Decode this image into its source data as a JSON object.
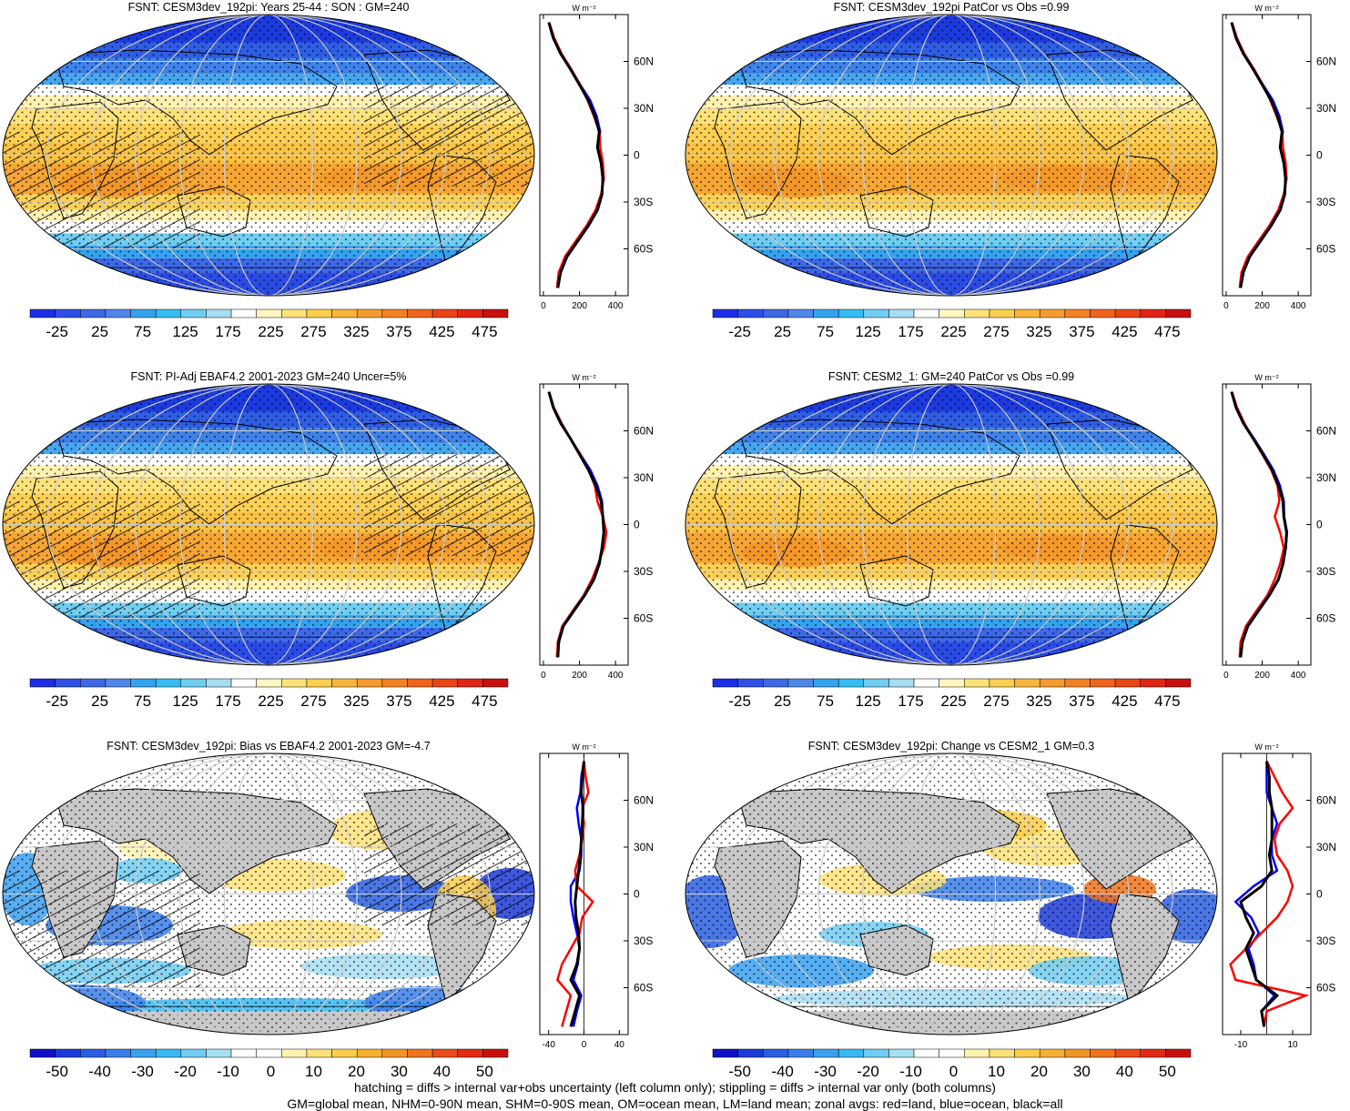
{
  "footer": {
    "line1": "hatching = diffs > internal var+obs uncertainty (left column only); stippling = diffs > internal var only (both columns)",
    "line2": "GM=global mean, NHM=0-90N mean, SHM=0-90S mean, OM=ocean mean, LM=land mean; zonal avgs: red=land, blue=ocean, black=all"
  },
  "colors": {
    "land": "#ff0000",
    "ocean": "#0000ff",
    "all": "#000000",
    "continent_mask": "#c8c8c8"
  },
  "zonal_units": "W m⁻²",
  "lat_ticks": [
    "60N",
    "30N",
    "0",
    "30S",
    "60S"
  ],
  "chart_data": [
    {
      "type": "heatmap",
      "title": "FSNT: CESM3dev_192pi: Years 25-44 : SON : GM=240",
      "kind": "full",
      "colorbar_labels": [
        "-25",
        "25",
        "75",
        "125",
        "175",
        "225",
        "275",
        "325",
        "375",
        "425",
        "475"
      ],
      "zonal_mean": {
        "type": "line",
        "xticks": [
          "0",
          "200",
          "400"
        ],
        "xlim": [
          -20,
          470
        ],
        "lat": [
          85,
          75,
          65,
          55,
          45,
          35,
          25,
          15,
          5,
          -5,
          -15,
          -25,
          -35,
          -45,
          -55,
          -65,
          -75,
          -85
        ],
        "series": [
          {
            "name": "all",
            "values": [
              30,
              55,
              95,
              150,
              200,
              250,
              285,
              310,
              300,
              320,
              330,
              325,
              300,
              250,
              190,
              130,
              95,
              80
            ]
          },
          {
            "name": "land",
            "values": [
              32,
              60,
              100,
              155,
              205,
              245,
              280,
              312,
              315,
              330,
              335,
              320,
              290,
              240,
              180,
              120,
              85,
              75
            ]
          },
          {
            "name": "ocean",
            "values": [
              30,
              55,
              95,
              150,
              205,
              260,
              295,
              315,
              300,
              320,
              328,
              326,
              302,
              252,
              192,
              132,
              96,
              80
            ]
          }
        ]
      }
    },
    {
      "type": "heatmap",
      "title": "FSNT: CESM3dev_192pi PatCor vs Obs =0.99",
      "kind": "full",
      "colorbar_labels": [
        "-25",
        "25",
        "75",
        "125",
        "175",
        "225",
        "275",
        "325",
        "375",
        "425",
        "475"
      ],
      "zonal_mean": {
        "type": "line",
        "xticks": [
          "0",
          "200",
          "400"
        ],
        "xlim": [
          -20,
          470
        ],
        "lat": [
          85,
          75,
          65,
          55,
          45,
          35,
          25,
          15,
          5,
          -5,
          -15,
          -25,
          -35,
          -45,
          -55,
          -65,
          -75,
          -85
        ],
        "series": [
          {
            "name": "all",
            "values": [
              30,
              55,
              95,
              150,
              200,
              250,
              285,
              310,
              300,
              320,
              330,
              325,
              300,
              250,
              190,
              130,
              95,
              80
            ]
          },
          {
            "name": "land",
            "values": [
              32,
              60,
              100,
              155,
              205,
              245,
              280,
              312,
              315,
              330,
              335,
              320,
              290,
              240,
              180,
              120,
              85,
              75
            ]
          },
          {
            "name": "ocean",
            "values": [
              30,
              55,
              95,
              150,
              205,
              260,
              295,
              315,
              300,
              320,
              328,
              326,
              302,
              252,
              192,
              132,
              96,
              80
            ]
          }
        ]
      }
    },
    {
      "type": "heatmap",
      "title": "FSNT: PI-Adj EBAF4.2 2001-2023 GM=240 Uncer=5%",
      "kind": "full",
      "colorbar_labels": [
        "-25",
        "25",
        "75",
        "125",
        "175",
        "225",
        "275",
        "325",
        "375",
        "425",
        "475"
      ],
      "zonal_mean": {
        "type": "line",
        "xticks": [
          "0",
          "200",
          "400"
        ],
        "xlim": [
          -20,
          470
        ],
        "lat": [
          85,
          75,
          65,
          55,
          45,
          35,
          25,
          15,
          5,
          -5,
          -15,
          -25,
          -35,
          -45,
          -55,
          -65,
          -75,
          -85
        ],
        "series": [
          {
            "name": "all",
            "values": [
              30,
              55,
              95,
              150,
              200,
              250,
              290,
              320,
              330,
              335,
              325,
              310,
              280,
              230,
              170,
              110,
              85,
              80
            ]
          },
          {
            "name": "land",
            "values": [
              32,
              58,
              100,
              150,
              205,
              250,
              285,
              300,
              330,
              350,
              335,
              305,
              270,
              225,
              165,
              105,
              80,
              75
            ]
          },
          {
            "name": "ocean",
            "values": [
              30,
              55,
              95,
              150,
              205,
              260,
              300,
              325,
              330,
              335,
              325,
              312,
              282,
              232,
              172,
              112,
              86,
              80
            ]
          }
        ]
      }
    },
    {
      "type": "heatmap",
      "title": "FSNT: CESM2_1: GM=240 PatCor vs Obs =0.99",
      "kind": "full",
      "colorbar_labels": [
        "-25",
        "25",
        "75",
        "125",
        "175",
        "225",
        "275",
        "325",
        "375",
        "425",
        "475"
      ],
      "zonal_mean": {
        "type": "line",
        "xticks": [
          "0",
          "200",
          "400"
        ],
        "xlim": [
          -20,
          470
        ],
        "lat": [
          85,
          75,
          65,
          55,
          45,
          35,
          25,
          15,
          5,
          -5,
          -15,
          -25,
          -35,
          -45,
          -55,
          -65,
          -75,
          -85
        ],
        "series": [
          {
            "name": "all",
            "values": [
              30,
              55,
              95,
              150,
              205,
              255,
              290,
              315,
              320,
              335,
              330,
              315,
              290,
              240,
              180,
              120,
              90,
              80
            ]
          },
          {
            "name": "land",
            "values": [
              32,
              60,
              100,
              150,
              200,
              250,
              285,
              295,
              270,
              300,
              320,
              300,
              270,
              230,
              170,
              110,
              80,
              75
            ]
          },
          {
            "name": "ocean",
            "values": [
              30,
              55,
              95,
              155,
              210,
              262,
              298,
              320,
              322,
              338,
              330,
              317,
              292,
              242,
              182,
              122,
              91,
              80
            ]
          }
        ]
      }
    },
    {
      "type": "heatmap",
      "title": "FSNT: CESM3dev_192pi: Bias vs EBAF4.2 2001-2023  GM=-4.7",
      "kind": "diff",
      "colorbar_labels": [
        "-50",
        "-40",
        "-30",
        "-20",
        "-10",
        "0",
        "10",
        "20",
        "30",
        "40",
        "50"
      ],
      "zonal_mean": {
        "type": "line",
        "xticks": [
          "-40",
          "0",
          "40"
        ],
        "xlim": [
          -50,
          50
        ],
        "lat": [
          85,
          75,
          65,
          55,
          45,
          35,
          25,
          15,
          5,
          -5,
          -15,
          -25,
          -35,
          -45,
          -55,
          -65,
          -75,
          -85
        ],
        "series": [
          {
            "name": "all",
            "values": [
              0,
              -2,
              -3,
              -1,
              -2,
              -3,
              -4,
              -6,
              -8,
              -10,
              -9,
              -6,
              -5,
              -8,
              -15,
              -5,
              -10,
              -15
            ]
          },
          {
            "name": "land",
            "values": [
              0,
              2,
              5,
              -2,
              0,
              -2,
              -5,
              -10,
              -8,
              10,
              -2,
              -5,
              -15,
              -25,
              -30,
              -15,
              -20,
              -25
            ]
          },
          {
            "name": "ocean",
            "values": [
              0,
              -3,
              -4,
              -8,
              -6,
              -3,
              -3,
              -5,
              -15,
              -15,
              -12,
              -8,
              -5,
              -7,
              -12,
              -3,
              -8,
              -12
            ]
          }
        ]
      }
    },
    {
      "type": "heatmap",
      "title": "FSNT: CESM3dev_192pi: Change vs CESM2_1 GM=0.3",
      "kind": "diff",
      "colorbar_labels": [
        "-50",
        "-40",
        "-30",
        "-20",
        "-10",
        "0",
        "10",
        "20",
        "30",
        "40",
        "50"
      ],
      "zonal_mean": {
        "type": "line",
        "xticks": [
          "-10",
          "10"
        ],
        "xlim": [
          -17,
          17
        ],
        "lat": [
          85,
          75,
          65,
          55,
          45,
          35,
          25,
          15,
          5,
          -5,
          -15,
          -25,
          -35,
          -45,
          -55,
          -65,
          -75,
          -85
        ],
        "series": [
          {
            "name": "all",
            "values": [
              0,
              1,
              1,
              2,
              2,
              2,
              1,
              2,
              -2,
              -10,
              -8,
              -5,
              -8,
              -6,
              -4,
              4,
              -2,
              -1
            ]
          },
          {
            "name": "land",
            "values": [
              0,
              3,
              6,
              10,
              5,
              3,
              4,
              8,
              10,
              8,
              4,
              -2,
              -8,
              -14,
              -12,
              15,
              0,
              -1
            ]
          },
          {
            "name": "ocean",
            "values": [
              0,
              0,
              0,
              2,
              4,
              2,
              2,
              4,
              -5,
              -12,
              -6,
              -3,
              -7,
              -5,
              -4,
              3,
              -2,
              -1
            ]
          }
        ]
      }
    }
  ]
}
